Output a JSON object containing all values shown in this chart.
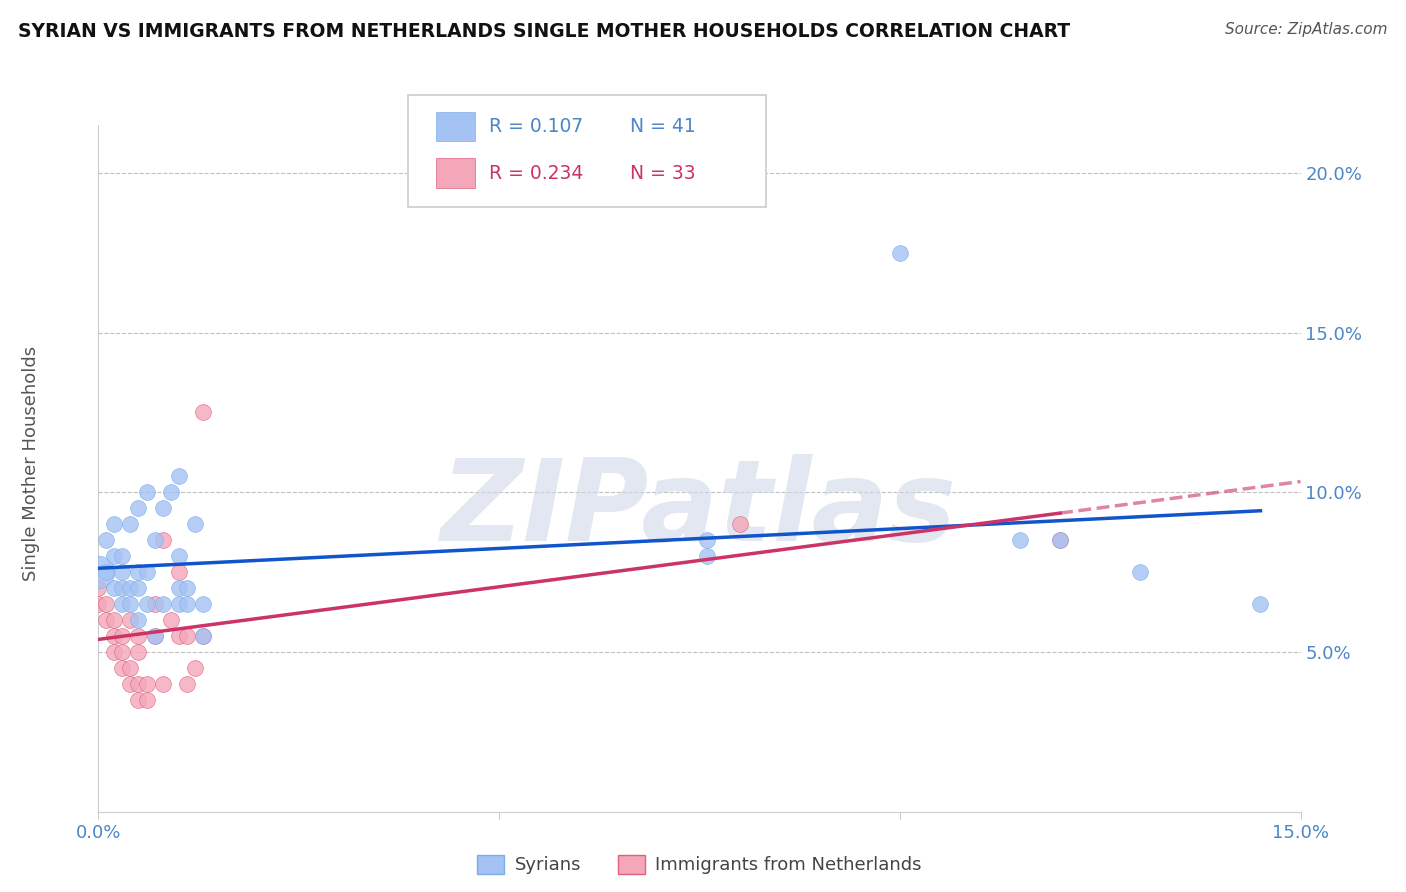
{
  "title": "SYRIAN VS IMMIGRANTS FROM NETHERLANDS SINGLE MOTHER HOUSEHOLDS CORRELATION CHART",
  "source": "Source: ZipAtlas.com",
  "ylabel": "Single Mother Households",
  "ytick_labels": [
    "5.0%",
    "10.0%",
    "15.0%",
    "20.0%"
  ],
  "ytick_values": [
    0.05,
    0.1,
    0.15,
    0.2
  ],
  "xlim": [
    0.0,
    0.15
  ],
  "ylim": [
    0.0,
    0.215
  ],
  "syrians_R": "0.107",
  "syrians_N": "41",
  "netherlands_R": "0.234",
  "netherlands_N": "33",
  "blue_color": "#a4c2f4",
  "pink_color": "#f4a7b9",
  "blue_line_color": "#1155cc",
  "pink_line_color": "#cc3366",
  "legend_label1": "Syrians",
  "legend_label2": "Immigrants from Netherlands",
  "watermark": "ZIPatlas",
  "text_color_blue": "#4a86c8",
  "text_color_pink": "#cc3366",
  "syrians_x": [
    0.0,
    0.001,
    0.001,
    0.002,
    0.002,
    0.002,
    0.003,
    0.003,
    0.003,
    0.003,
    0.004,
    0.004,
    0.004,
    0.005,
    0.005,
    0.005,
    0.005,
    0.006,
    0.006,
    0.006,
    0.007,
    0.007,
    0.008,
    0.008,
    0.009,
    0.01,
    0.01,
    0.01,
    0.01,
    0.011,
    0.011,
    0.012,
    0.013,
    0.013,
    0.076,
    0.076,
    0.1,
    0.115,
    0.12,
    0.13,
    0.145
  ],
  "syrians_y": [
    0.075,
    0.075,
    0.085,
    0.07,
    0.08,
    0.09,
    0.065,
    0.07,
    0.075,
    0.08,
    0.065,
    0.07,
    0.09,
    0.06,
    0.07,
    0.075,
    0.095,
    0.065,
    0.075,
    0.1,
    0.055,
    0.085,
    0.065,
    0.095,
    0.1,
    0.065,
    0.07,
    0.08,
    0.105,
    0.065,
    0.07,
    0.09,
    0.055,
    0.065,
    0.08,
    0.085,
    0.175,
    0.085,
    0.085,
    0.075,
    0.065
  ],
  "syrians_large": [
    0
  ],
  "netherlands_x": [
    0.0,
    0.0,
    0.001,
    0.001,
    0.002,
    0.002,
    0.002,
    0.003,
    0.003,
    0.003,
    0.004,
    0.004,
    0.004,
    0.005,
    0.005,
    0.005,
    0.005,
    0.006,
    0.006,
    0.007,
    0.007,
    0.008,
    0.008,
    0.009,
    0.01,
    0.01,
    0.011,
    0.011,
    0.012,
    0.013,
    0.013,
    0.08,
    0.12
  ],
  "netherlands_y": [
    0.065,
    0.07,
    0.06,
    0.065,
    0.05,
    0.055,
    0.06,
    0.045,
    0.05,
    0.055,
    0.04,
    0.045,
    0.06,
    0.035,
    0.04,
    0.05,
    0.055,
    0.035,
    0.04,
    0.055,
    0.065,
    0.04,
    0.085,
    0.06,
    0.055,
    0.075,
    0.04,
    0.055,
    0.045,
    0.055,
    0.125,
    0.09,
    0.085
  ]
}
